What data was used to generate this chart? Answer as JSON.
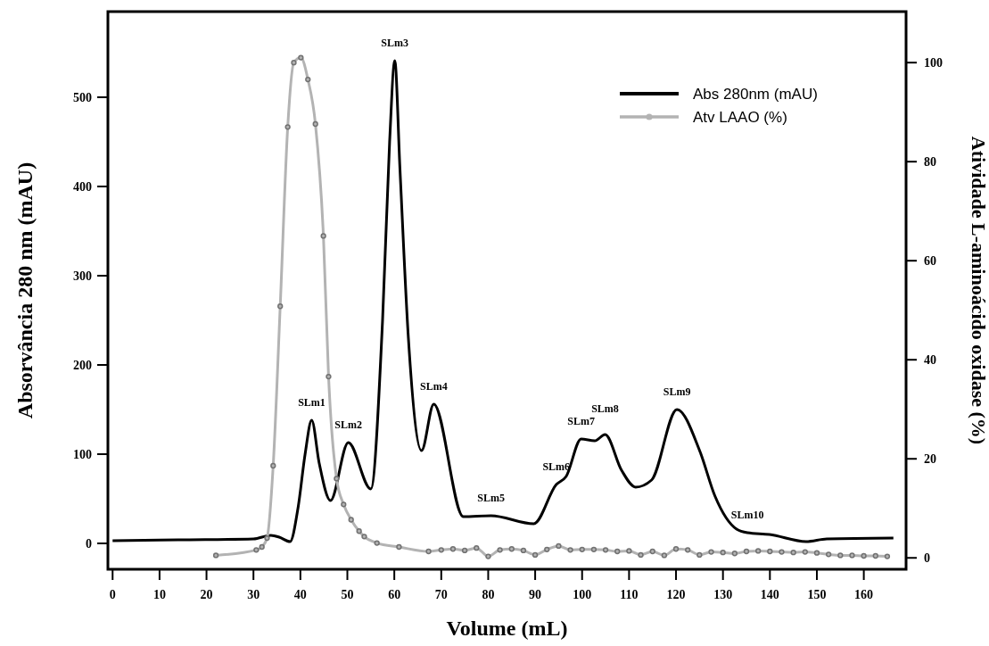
{
  "chart_data": {
    "type": "line",
    "xlabel": "Volume (mL)",
    "ylabel": "Absorvância 280 nm (mAU)",
    "y2label": "Atividade L-aminoácido oxidase (%)",
    "xlim": [
      -1,
      169
    ],
    "xticks": [
      0,
      10,
      20,
      30,
      40,
      50,
      60,
      70,
      80,
      90,
      100,
      110,
      120,
      130,
      140,
      150,
      160
    ],
    "ylim": [
      -29,
      596
    ],
    "yticks": [
      0,
      100,
      200,
      300,
      400,
      500
    ],
    "y2lim": [
      -2.3,
      110.3
    ],
    "y2ticks": [
      0,
      20,
      40,
      60,
      80,
      100
    ],
    "legend": "top right",
    "grid": false,
    "series": [
      {
        "name": "Abs 280nm (mAU)",
        "color": "#000000",
        "marker": "none",
        "x": [
          0,
          14,
          30,
          33.7,
          35.5,
          37.8,
          39.5,
          41,
          42.4,
          44,
          46.4,
          50.2,
          55,
          57.5,
          59,
          60.1,
          61.2,
          63,
          65.8,
          68.4,
          74.7,
          80.6,
          89.7,
          94.5,
          96.6,
          99.8,
          102.7,
          104.9,
          108.4,
          111.4,
          114.8,
          120.2,
          125.1,
          128.3,
          132.9,
          135.2,
          139.9,
          147.7,
          152.1,
          166.3
        ],
        "values": [
          3,
          4,
          5,
          9,
          7,
          2,
          40,
          100,
          138,
          90,
          48,
          113,
          61,
          250,
          450,
          541,
          420,
          230,
          104,
          156,
          30,
          31,
          22,
          66,
          75,
          117,
          115,
          122,
          82,
          63,
          71,
          150,
          103,
          53,
          16,
          12,
          10,
          2,
          5,
          6
        ]
      },
      {
        "name": "Atv LAAO (%)",
        "color": "#b3b3b3",
        "marker": "circle",
        "axis": "y2",
        "x": [
          22,
          30.6,
          31.8,
          32.9,
          34.2,
          35.7,
          37.3,
          38.6,
          40.1,
          41.6,
          43.2,
          44.9,
          46,
          47.7,
          49.2,
          50.8,
          52.5,
          53.6,
          56.3,
          61,
          67.3,
          70,
          72.5,
          75,
          77.5,
          80,
          82.5,
          85,
          87.5,
          90,
          92.5,
          95,
          97.5,
          100,
          102.5,
          105,
          107.5,
          110,
          112.5,
          115,
          117.5,
          120,
          122.5,
          125,
          127.5,
          130,
          132.5,
          135,
          137.5,
          140,
          142.5,
          145,
          147.5,
          150,
          152.5,
          155,
          157.5,
          160,
          162.5,
          165
        ],
        "values": [
          0.5,
          1.6,
          2.2,
          4,
          18.6,
          50.8,
          87,
          100,
          101,
          96.6,
          87.6,
          65,
          36.6,
          16,
          10.8,
          7.7,
          5.4,
          4.3,
          3,
          2.2,
          1.3,
          1.6,
          1.8,
          1.5,
          2,
          0.3,
          1.6,
          1.8,
          1.5,
          0.6,
          1.7,
          2.4,
          1.6,
          1.7,
          1.7,
          1.6,
          1.3,
          1.4,
          0.6,
          1.3,
          0.5,
          1.8,
          1.6,
          0.6,
          1.2,
          1.1,
          0.9,
          1.3,
          1.4,
          1.3,
          1.2,
          1.1,
          1.2,
          1,
          0.7,
          0.5,
          0.5,
          0.4,
          0.4,
          0.3
        ]
      }
    ],
    "annotations": [
      {
        "text": "SLm1",
        "x": 42.4,
        "y": 138
      },
      {
        "text": "SLm2",
        "x": 50.2,
        "y": 113
      },
      {
        "text": "SLm3",
        "x": 60.1,
        "y": 541
      },
      {
        "text": "SLm4",
        "x": 68.4,
        "y": 156
      },
      {
        "text": "SLm5",
        "x": 80.6,
        "y": 31
      },
      {
        "text": "SLm6",
        "x": 94.5,
        "y": 66
      },
      {
        "text": "SLm7",
        "x": 99.8,
        "y": 117
      },
      {
        "text": "SLm8",
        "x": 104.9,
        "y": 122
      },
      {
        "text": "SLm9",
        "x": 120.2,
        "y": 150
      },
      {
        "text": "SLm10",
        "x": 135.2,
        "y": 12
      }
    ]
  }
}
